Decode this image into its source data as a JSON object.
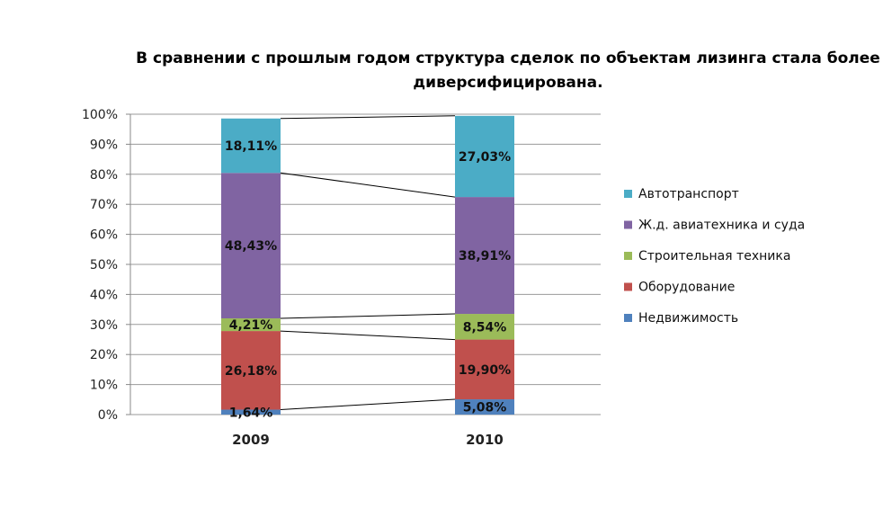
{
  "chart_data": {
    "type": "bar",
    "stacked": true,
    "title": "В сравнении с прошлым годом структура сделок по объектам лизинга стала более диверсифицирована.",
    "categories": [
      "2009",
      "2010"
    ],
    "ylim": [
      0,
      100
    ],
    "yticks": [
      "0%",
      "10%",
      "20%",
      "30%",
      "40%",
      "50%",
      "60%",
      "70%",
      "80%",
      "90%",
      "100%"
    ],
    "grid": true,
    "legend_position": "right",
    "series": [
      {
        "name": "Недвижимость",
        "values": [
          1.64,
          5.08
        ],
        "labels": [
          "1,64%",
          "5,08%"
        ],
        "color": "#4f81bd"
      },
      {
        "name": "Оборудование",
        "values": [
          26.18,
          19.9
        ],
        "labels": [
          "26,18%",
          "19,90%"
        ],
        "color": "#c0504d"
      },
      {
        "name": "Строительная техника",
        "values": [
          4.21,
          8.54
        ],
        "labels": [
          "4,21%",
          "8,54%"
        ],
        "color": "#9bbb59"
      },
      {
        "name": "Ж.д. авиатехника и суда",
        "values": [
          48.43,
          38.91
        ],
        "labels": [
          "48,43%",
          "38,91%"
        ],
        "color": "#8064a2"
      },
      {
        "name": "Автотранспорт",
        "values": [
          18.11,
          27.03
        ],
        "labels": [
          "18,11%",
          "27,03%"
        ],
        "color": "#4bacc6"
      }
    ],
    "legend_order": [
      "Автотранспорт",
      "Ж.д. авиатехника и суда",
      "Строительная техника",
      "Оборудование",
      "Недвижимость"
    ]
  }
}
